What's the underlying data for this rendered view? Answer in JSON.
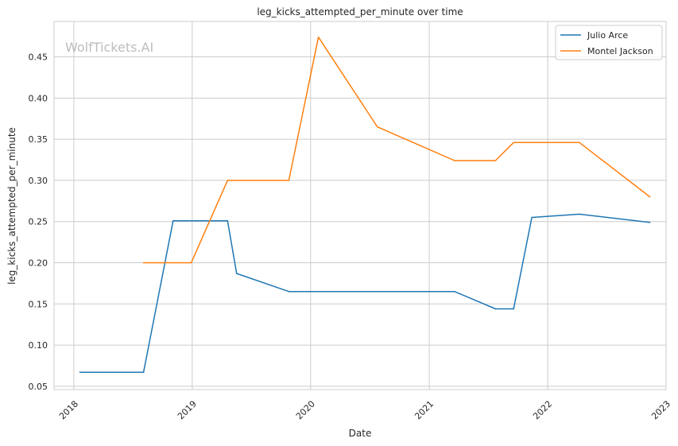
{
  "chart_data": {
    "type": "line",
    "title": "leg_kicks_attempted_per_minute over time",
    "xlabel": "Date",
    "ylabel": "leg_kicks_attempted_per_minute",
    "watermark": "WolfTickets.AI",
    "xlim": [
      "2017-11-01",
      "2023-01-01"
    ],
    "ylim": [
      0.046,
      0.493
    ],
    "x_ticks": [
      "2018",
      "2019",
      "2020",
      "2021",
      "2022",
      "2023"
    ],
    "y_ticks": [
      "0.05",
      "0.10",
      "0.15",
      "0.20",
      "0.25",
      "0.30",
      "0.35",
      "0.40",
      "0.45"
    ],
    "grid": true,
    "legend_position": "top-right",
    "series": [
      {
        "name": "Julio Arce",
        "color": "#1f77b4",
        "points": [
          [
            "2018-01-20",
            0.067
          ],
          [
            "2018-08-04",
            0.067
          ],
          [
            "2018-11-03",
            0.251
          ],
          [
            "2019-04-20",
            0.251
          ],
          [
            "2019-05-18",
            0.187
          ],
          [
            "2019-10-26",
            0.165
          ],
          [
            "2021-03-20",
            0.165
          ],
          [
            "2021-07-24",
            0.144
          ],
          [
            "2021-09-18",
            0.144
          ],
          [
            "2021-11-13",
            0.255
          ],
          [
            "2022-04-09",
            0.259
          ],
          [
            "2022-11-12",
            0.249
          ]
        ]
      },
      {
        "name": "Montel Jackson",
        "color": "#ff7f0e",
        "points": [
          [
            "2018-08-04",
            0.2
          ],
          [
            "2018-12-29",
            0.2
          ],
          [
            "2019-04-20",
            0.3
          ],
          [
            "2019-10-26",
            0.3
          ],
          [
            "2020-01-25",
            0.474
          ],
          [
            "2020-07-25",
            0.365
          ],
          [
            "2021-03-20",
            0.324
          ],
          [
            "2021-07-24",
            0.324
          ],
          [
            "2021-09-18",
            0.346
          ],
          [
            "2022-04-09",
            0.346
          ],
          [
            "2022-11-12",
            0.28
          ]
        ]
      }
    ]
  }
}
